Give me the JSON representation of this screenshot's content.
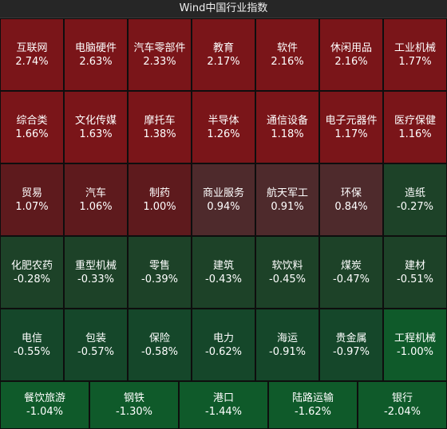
{
  "title": "Wind中国行业指数",
  "colors": {
    "strong_up": "#7a1519",
    "mid_up": "#5e1a1d",
    "weak_up": "#4e2a2c",
    "weak_down": "#1d4228",
    "mid_down": "#15472a",
    "strong_down": "#0f5a2a"
  },
  "tiles": [
    {
      "name": "互联网",
      "change": "2.74%",
      "tone": "strong_up"
    },
    {
      "name": "电脑硬件",
      "change": "2.63%",
      "tone": "strong_up"
    },
    {
      "name": "汽车零部件",
      "change": "2.33%",
      "tone": "strong_up"
    },
    {
      "name": "教育",
      "change": "2.17%",
      "tone": "strong_up"
    },
    {
      "name": "软件",
      "change": "2.16%",
      "tone": "strong_up"
    },
    {
      "name": "休闲用品",
      "change": "2.16%",
      "tone": "strong_up"
    },
    {
      "name": "工业机械",
      "change": "1.77%",
      "tone": "strong_up"
    },
    {
      "name": "综合类",
      "change": "1.66%",
      "tone": "strong_up"
    },
    {
      "name": "文化传媒",
      "change": "1.63%",
      "tone": "strong_up"
    },
    {
      "name": "摩托车",
      "change": "1.38%",
      "tone": "strong_up"
    },
    {
      "name": "半导体",
      "change": "1.26%",
      "tone": "strong_up"
    },
    {
      "name": "通信设备",
      "change": "1.18%",
      "tone": "strong_up"
    },
    {
      "name": "电子元器件",
      "change": "1.17%",
      "tone": "strong_up"
    },
    {
      "name": "医疗保健",
      "change": "1.16%",
      "tone": "strong_up"
    },
    {
      "name": "贸易",
      "change": "1.07%",
      "tone": "mid_up"
    },
    {
      "name": "汽车",
      "change": "1.06%",
      "tone": "mid_up"
    },
    {
      "name": "制药",
      "change": "1.00%",
      "tone": "mid_up"
    },
    {
      "name": "商业服务",
      "change": "0.94%",
      "tone": "weak_up"
    },
    {
      "name": "航天军工",
      "change": "0.91%",
      "tone": "weak_up"
    },
    {
      "name": "环保",
      "change": "0.84%",
      "tone": "weak_up"
    },
    {
      "name": "造纸",
      "change": "-0.27%",
      "tone": "weak_down"
    },
    {
      "name": "化肥农药",
      "change": "-0.28%",
      "tone": "weak_down"
    },
    {
      "name": "重型机械",
      "change": "-0.33%",
      "tone": "weak_down"
    },
    {
      "name": "零售",
      "change": "-0.39%",
      "tone": "weak_down"
    },
    {
      "name": "建筑",
      "change": "-0.43%",
      "tone": "weak_down"
    },
    {
      "name": "软饮料",
      "change": "-0.45%",
      "tone": "weak_down"
    },
    {
      "name": "煤炭",
      "change": "-0.47%",
      "tone": "weak_down"
    },
    {
      "name": "建材",
      "change": "-0.51%",
      "tone": "weak_down"
    },
    {
      "name": "电信",
      "change": "-0.55%",
      "tone": "mid_down"
    },
    {
      "name": "包装",
      "change": "-0.57%",
      "tone": "mid_down"
    },
    {
      "name": "保险",
      "change": "-0.58%",
      "tone": "mid_down"
    },
    {
      "name": "电力",
      "change": "-0.62%",
      "tone": "mid_down"
    },
    {
      "name": "海运",
      "change": "-0.91%",
      "tone": "mid_down"
    },
    {
      "name": "贵金属",
      "change": "-0.97%",
      "tone": "mid_down"
    },
    {
      "name": "工程机械",
      "change": "-1.00%",
      "tone": "strong_down"
    }
  ],
  "bottom_tiles": [
    {
      "name": "餐饮旅游",
      "change": "-1.04%",
      "tone": "strong_down"
    },
    {
      "name": "钢铁",
      "change": "-1.30%",
      "tone": "strong_down"
    },
    {
      "name": "港口",
      "change": "-1.44%",
      "tone": "strong_down"
    },
    {
      "name": "陆路运输",
      "change": "-1.62%",
      "tone": "strong_down"
    },
    {
      "name": "银行",
      "change": "-2.04%",
      "tone": "strong_down"
    }
  ]
}
